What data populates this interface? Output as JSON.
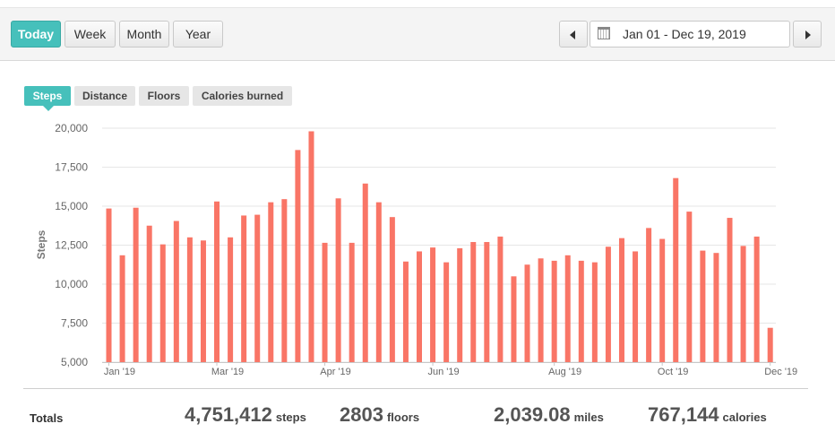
{
  "range_buttons": [
    {
      "label": "Today",
      "active": true
    },
    {
      "label": "Week",
      "active": false
    },
    {
      "label": "Month",
      "active": false
    },
    {
      "label": "Year",
      "active": false
    }
  ],
  "date_range": "Jan 01 - Dec 19, 2019",
  "metric_tabs": [
    {
      "label": "Steps",
      "active": true
    },
    {
      "label": "Distance",
      "active": false
    },
    {
      "label": "Floors",
      "active": false
    },
    {
      "label": "Calories burned",
      "active": false
    }
  ],
  "colors": {
    "accent": "#46c0bb",
    "bar": "#f97566",
    "grid": "#e6e6e6"
  },
  "chart_data": {
    "type": "bar",
    "ylabel": "Steps",
    "ylim": [
      5000,
      20000
    ],
    "yticks": [
      "5,000",
      "7,500",
      "10,000",
      "12,500",
      "15,000",
      "17,500",
      "20,000"
    ],
    "x_labels": [
      "Jan '19",
      "Mar '19",
      "Apr '19",
      "Jun '19",
      "Aug '19",
      "Oct '19",
      "Dec '19"
    ],
    "grid": true,
    "values": [
      14850,
      11850,
      14900,
      13750,
      12550,
      14050,
      13000,
      12800,
      15300,
      13000,
      14400,
      14450,
      15250,
      15450,
      18600,
      19800,
      12650,
      15500,
      12650,
      16450,
      15250,
      14300,
      11450,
      12100,
      12350,
      11400,
      12300,
      12700,
      12700,
      13050,
      10500,
      11250,
      11650,
      11500,
      11850,
      11500,
      11400,
      12400,
      12950,
      12100,
      13600,
      12900,
      16800,
      14650,
      12150,
      12000,
      14250,
      12450,
      13050,
      7200
    ]
  },
  "totals": {
    "label": "Totals",
    "steps": {
      "value": "4,751,412",
      "unit": "steps"
    },
    "floors": {
      "value": "2803",
      "unit": "floors"
    },
    "miles": {
      "value": "2,039.08",
      "unit": "miles"
    },
    "calories": {
      "value": "767,144",
      "unit": "calories"
    }
  }
}
